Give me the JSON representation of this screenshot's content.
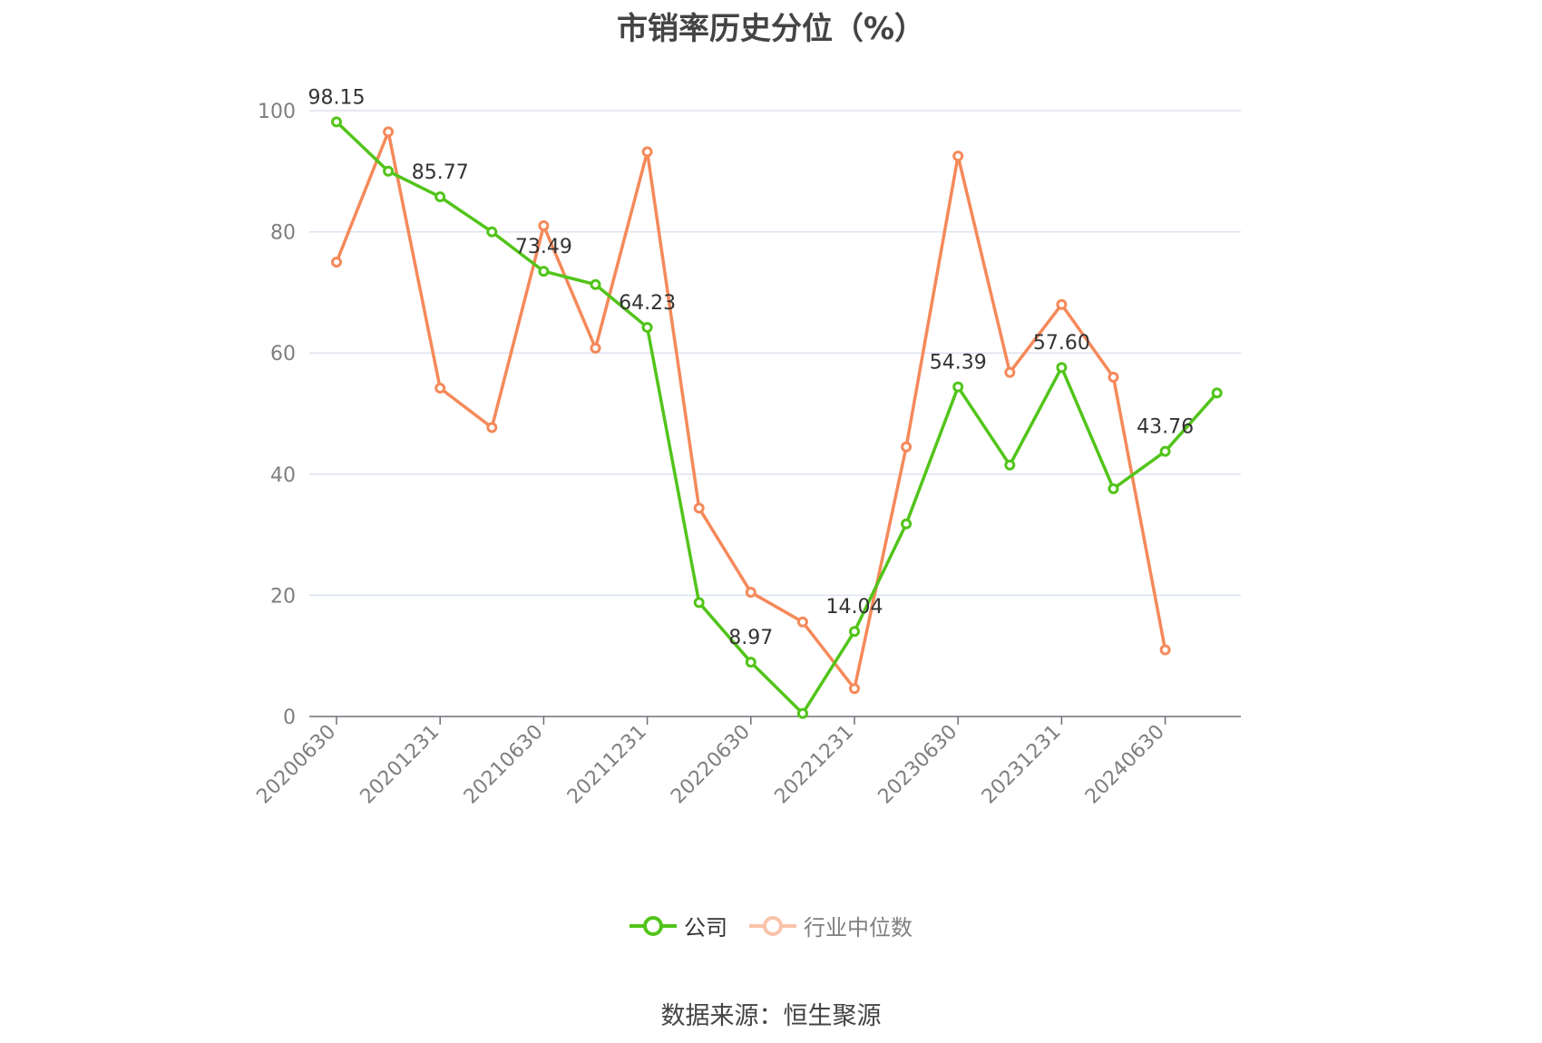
{
  "title": "市销率历史分位（%）",
  "source_text": "数据来源：恒生聚源",
  "colors": {
    "company": "#52c41a",
    "industry": "#f5895a",
    "grid": "#dce1f0",
    "axis": "#6e7079"
  },
  "legend": [
    {
      "label": "公司",
      "icon": "circle-line-icon"
    },
    {
      "label": "行业中位数",
      "icon": "circle-line-icon"
    }
  ],
  "chart_data": {
    "type": "line",
    "title": "市销率历史分位（%）",
    "x": [
      "20200630",
      "20200930",
      "20201231",
      "20210331",
      "20210630",
      "20210930",
      "20211231",
      "20220331",
      "20220630",
      "20220930",
      "20221231",
      "20230331",
      "20230630",
      "20230930",
      "20231231",
      "20240331",
      "20240630",
      "20240930"
    ],
    "tick_labels": [
      "20200630",
      "20201231",
      "20210630",
      "20211231",
      "20220630",
      "20221231",
      "20230630",
      "20231231",
      "20240630"
    ],
    "ylim": [
      0,
      100
    ],
    "yticks": [
      0,
      20,
      40,
      60,
      80,
      100
    ],
    "grid": true,
    "legend_position": "bottom",
    "series": [
      {
        "name": "公司",
        "values": [
          98.15,
          90.0,
          85.77,
          80.0,
          73.49,
          71.3,
          64.23,
          18.8,
          8.97,
          0.5,
          14.04,
          31.8,
          54.39,
          41.5,
          57.6,
          37.6,
          43.76,
          53.4
        ],
        "labels": [
          "98.15",
          "",
          "85.77",
          "",
          "73.49",
          "",
          "64.23",
          "",
          "8.97",
          "",
          "14.04",
          "",
          "54.39",
          "",
          "57.60",
          "",
          "43.76",
          ""
        ]
      },
      {
        "name": "行业中位数",
        "values": [
          75.0,
          96.5,
          54.2,
          47.7,
          81.0,
          60.8,
          93.2,
          34.4,
          20.5,
          15.6,
          4.6,
          44.5,
          92.5,
          56.8,
          68.0,
          56.0,
          11.0,
          null
        ]
      }
    ]
  }
}
